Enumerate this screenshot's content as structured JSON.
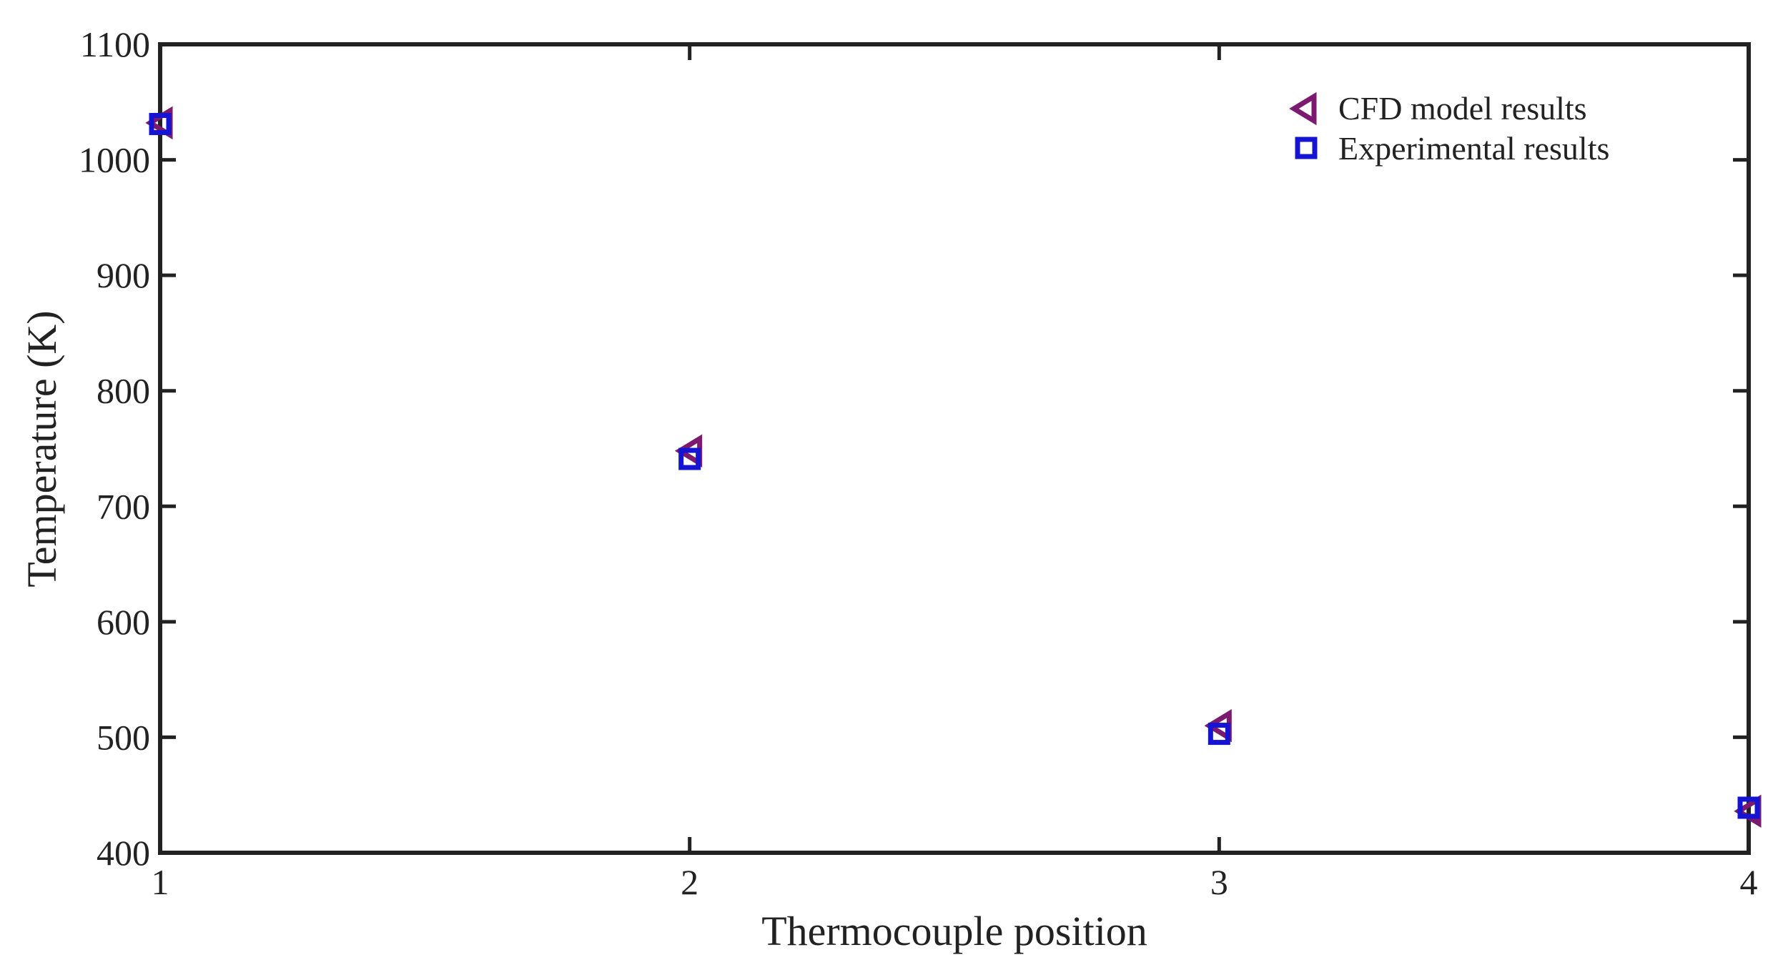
{
  "chart_data": {
    "type": "scatter",
    "xlabel": "Thermocouple position",
    "ylabel": "Temperature (K)",
    "xlim": [
      1,
      4
    ],
    "ylim": [
      400,
      1100
    ],
    "xticks": [
      1,
      2,
      3,
      4
    ],
    "yticks": [
      400,
      500,
      600,
      700,
      800,
      900,
      1000,
      1100
    ],
    "grid": false,
    "legend_position": "top-right",
    "series": [
      {
        "name": "CFD model results",
        "marker": "triangle-left",
        "color": "#7b1a6e",
        "x": [
          1,
          2,
          3,
          4
        ],
        "y": [
          1032,
          748,
          510,
          436
        ]
      },
      {
        "name": "Experimental results",
        "marker": "square",
        "color": "#1414d2",
        "x": [
          1,
          2,
          3,
          4
        ],
        "y": [
          1031,
          741,
          503,
          439
        ]
      }
    ]
  }
}
